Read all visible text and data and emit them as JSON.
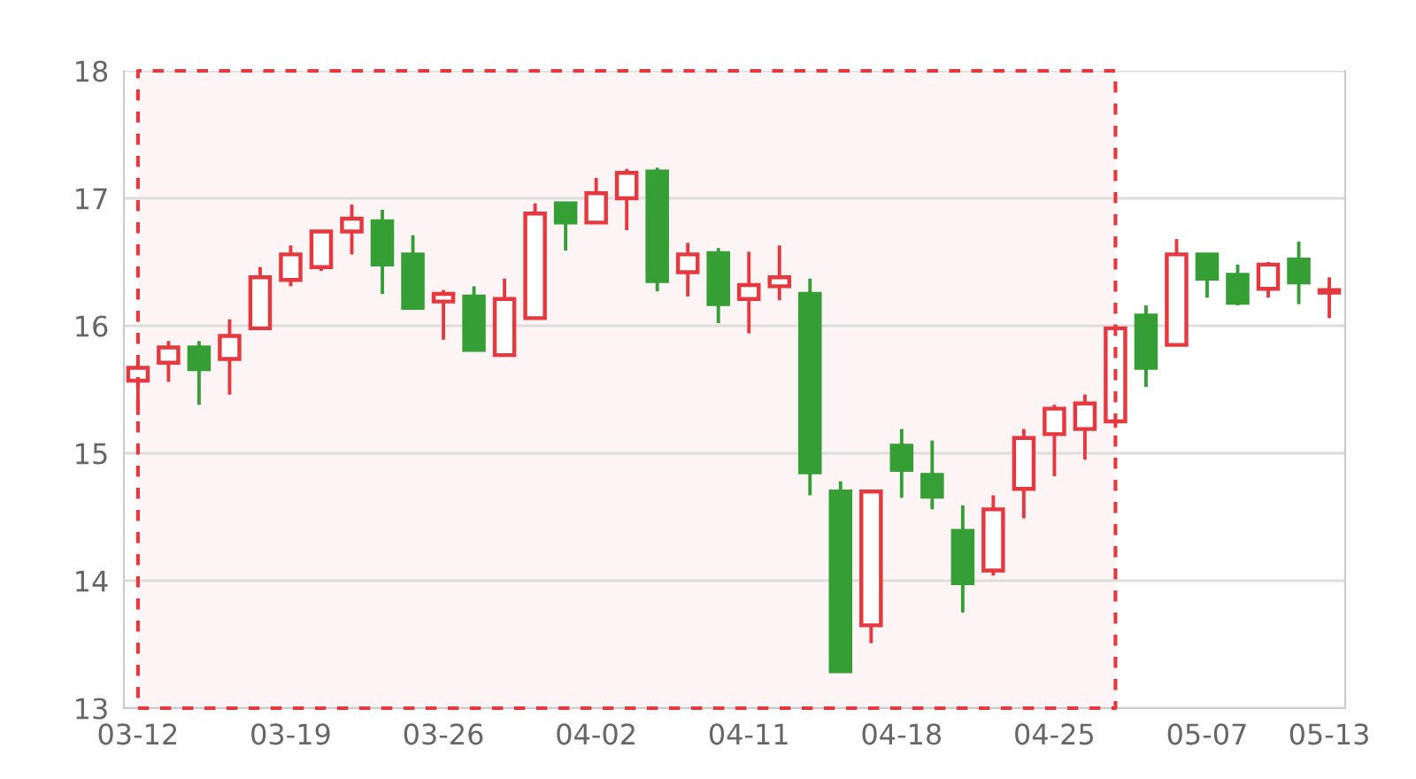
{
  "chart_data": {
    "type": "candlestick",
    "categories": [
      "03-12",
      null,
      null,
      null,
      null,
      "03-19",
      null,
      null,
      null,
      null,
      "03-26",
      null,
      null,
      null,
      null,
      "04-02",
      null,
      null,
      null,
      null,
      "04-11",
      null,
      null,
      null,
      null,
      "04-18",
      null,
      null,
      null,
      null,
      "04-25",
      null,
      null,
      null,
      null,
      "05-07",
      null,
      null,
      null,
      "05-13"
    ],
    "ohlc": [
      [
        15.57,
        15.69,
        15.3,
        15.67
      ],
      [
        15.71,
        15.88,
        15.56,
        15.83
      ],
      [
        15.83,
        15.88,
        15.38,
        15.66
      ],
      [
        15.74,
        16.05,
        15.46,
        15.92
      ],
      [
        15.98,
        16.46,
        15.98,
        16.38
      ],
      [
        16.36,
        16.63,
        16.31,
        16.56
      ],
      [
        16.46,
        16.74,
        16.43,
        16.74
      ],
      [
        16.74,
        16.95,
        16.56,
        16.84
      ],
      [
        16.82,
        16.91,
        16.25,
        16.48
      ],
      [
        16.56,
        16.71,
        16.14,
        16.14
      ],
      [
        16.19,
        16.28,
        15.89,
        16.25
      ],
      [
        16.23,
        16.31,
        15.81,
        15.81
      ],
      [
        15.77,
        16.37,
        15.76,
        16.21
      ],
      [
        16.06,
        16.96,
        16.06,
        16.88
      ],
      [
        16.96,
        16.96,
        16.59,
        16.81
      ],
      [
        16.81,
        17.16,
        16.81,
        17.04
      ],
      [
        17.0,
        17.23,
        16.75,
        17.2
      ],
      [
        17.21,
        17.24,
        16.27,
        16.35
      ],
      [
        16.42,
        16.65,
        16.23,
        16.56
      ],
      [
        16.57,
        16.61,
        16.02,
        16.17
      ],
      [
        16.21,
        16.58,
        15.94,
        16.32
      ],
      [
        16.31,
        16.63,
        16.2,
        16.38
      ],
      [
        16.25,
        16.37,
        14.67,
        14.85
      ],
      [
        14.7,
        14.78,
        13.29,
        13.29
      ],
      [
        13.65,
        14.7,
        13.51,
        14.7
      ],
      [
        15.06,
        15.19,
        14.65,
        14.87
      ],
      [
        14.83,
        15.1,
        14.56,
        14.66
      ],
      [
        14.39,
        14.59,
        13.75,
        13.98
      ],
      [
        14.08,
        14.67,
        14.04,
        14.56
      ],
      [
        14.72,
        15.19,
        14.49,
        15.12
      ],
      [
        15.15,
        15.38,
        14.82,
        15.35
      ],
      [
        15.19,
        15.46,
        14.95,
        15.39
      ],
      [
        15.25,
        16.01,
        15.2,
        15.98
      ],
      [
        16.08,
        16.16,
        15.52,
        15.67
      ],
      [
        15.85,
        16.68,
        15.85,
        16.56
      ],
      [
        16.56,
        16.56,
        16.22,
        16.37
      ],
      [
        16.4,
        16.48,
        16.16,
        16.18
      ],
      [
        16.29,
        16.5,
        16.22,
        16.48
      ],
      [
        16.52,
        16.66,
        16.17,
        16.34
      ],
      [
        16.26,
        16.38,
        16.06,
        16.28
      ]
    ],
    "colors": [
      "#e6393f",
      "#e6393f",
      "#359e34",
      "#e6393f",
      "#e6393f",
      "#e6393f",
      "#e6393f",
      "#e6393f",
      "#359e34",
      "#359e34",
      "#e6393f",
      "#359e34",
      "#e6393f",
      "#e6393f",
      "#359e34",
      "#e6393f",
      "#e6393f",
      "#359e34",
      "#e6393f",
      "#359e34",
      "#e6393f",
      "#e6393f",
      "#359e34",
      "#359e34",
      "#e6393f",
      "#359e34",
      "#359e34",
      "#359e34",
      "#e6393f",
      "#e6393f",
      "#e6393f",
      "#e6393f",
      "#e6393f",
      "#359e34",
      "#e6393f",
      "#359e34",
      "#359e34",
      "#e6393f",
      "#359e34",
      "#e6393f"
    ],
    "ylim": [
      13,
      18
    ],
    "yticks": [
      13,
      14,
      15,
      16,
      17,
      18
    ],
    "grid": "y"
  }
}
